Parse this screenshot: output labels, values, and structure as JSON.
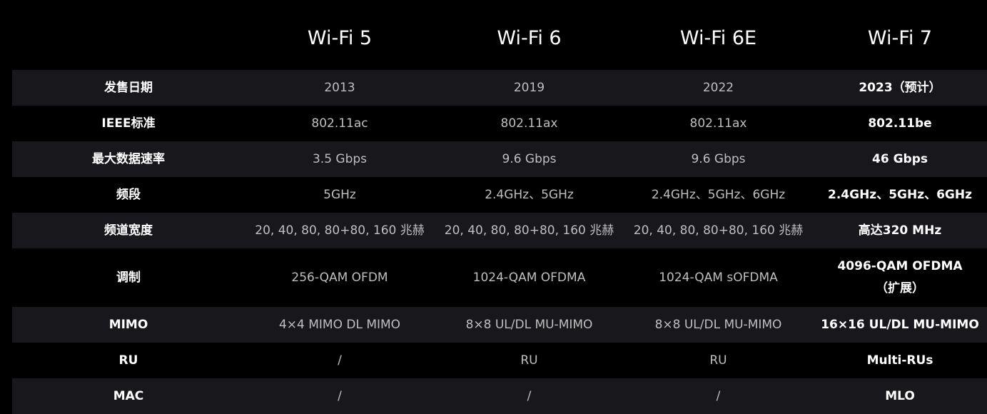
{
  "headers": [
    "",
    "Wi-Fi 5",
    "Wi-Fi 6",
    "Wi-Fi 6E",
    "Wi-Fi 7"
  ],
  "rows": [
    {
      "label": "发售日期",
      "values": [
        "2013",
        "2019",
        "2022"
      ],
      "wifi7": [
        "2023（预计）"
      ]
    },
    {
      "label": "IEEE标准",
      "values": [
        "802.11ac",
        "802.11ax",
        "802.11ax"
      ],
      "wifi7": [
        "802.11be"
      ]
    },
    {
      "label": "最大数据速率",
      "values": [
        "3.5 Gbps",
        "9.6 Gbps",
        "9.6 Gbps"
      ],
      "wifi7": [
        "46 Gbps"
      ]
    },
    {
      "label": "频段",
      "values": [
        "5GHz",
        "2.4GHz、5GHz",
        "2.4GHz、5GHz、6GHz"
      ],
      "wifi7": [
        "2.4GHz、5GHz、6GHz"
      ]
    },
    {
      "label": "频道宽度",
      "values": [
        "20, 40, 80, 80+80, 160 兆赫",
        "20, 40, 80, 80+80, 160 兆赫",
        "20, 40, 80, 80+80, 160 兆赫"
      ],
      "wifi7": [
        "高达320 MHz"
      ]
    },
    {
      "label": "调制",
      "values": [
        "256-QAM OFDM",
        "1024-QAM OFDMA",
        "1024-QAM sOFDMA"
      ],
      "wifi7": [
        "4096-QAM OFDMA",
        "（扩展）"
      ]
    },
    {
      "label": "MIMO",
      "values": [
        "4×4 MIMO DL MIMO",
        "8×8 UL/DL MU-MIMO",
        "8×8 UL/DL MU-MIMO"
      ],
      "wifi7": [
        "16×16 UL/DL MU-MIMO"
      ]
    },
    {
      "label": "RU",
      "values": [
        "/",
        "RU",
        "RU"
      ],
      "wifi7": [
        "Multi-RUs"
      ]
    },
    {
      "label": "MAC",
      "values": [
        "/",
        "/",
        "/"
      ],
      "wifi7": [
        "MLO"
      ]
    }
  ],
  "colors": {
    "background": "#000000",
    "shaded_row": "#18181c",
    "header_text": "#ffffff",
    "value_text": "#bfbfbf"
  }
}
